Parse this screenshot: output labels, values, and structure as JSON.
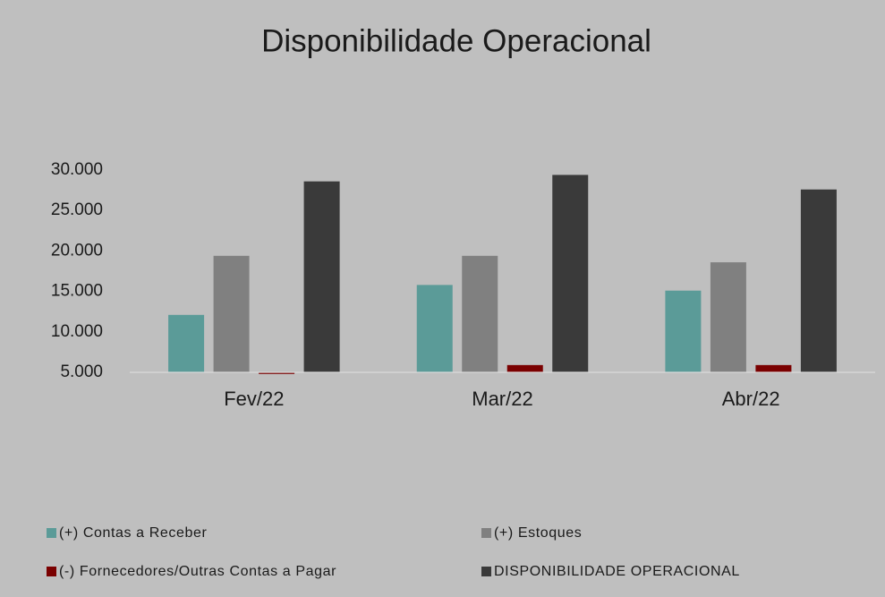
{
  "chart_data": {
    "type": "bar",
    "title": "Disponibilidade Operacional",
    "categories": [
      "Fev/22",
      "Mar/22",
      "Abr/22"
    ],
    "series": [
      {
        "name": "(+) Contas a Receber",
        "color": "#5b9b98",
        "values": [
          12100,
          15800,
          15100
        ]
      },
      {
        "name": "(+) Estoques",
        "color": "#808080",
        "values": [
          19400,
          19400,
          18600
        ]
      },
      {
        "name": "(-) Fornecedores/Outras Contas a Pagar",
        "color": "#7a0000",
        "values": [
          4800,
          5900,
          5900
        ]
      },
      {
        "name": "DISPONIBILIDADE OPERACIONAL",
        "color": "#3a3a3a",
        "values": [
          28600,
          29400,
          27600
        ]
      }
    ],
    "ylim": [
      5000,
      30000
    ],
    "yticks": [
      {
        "value": 5000,
        "label": "5.000"
      },
      {
        "value": 10000,
        "label": "10.000"
      },
      {
        "value": 15000,
        "label": "15.000"
      },
      {
        "value": 20000,
        "label": "20.000"
      },
      {
        "value": 25000,
        "label": "25.000"
      },
      {
        "value": 30000,
        "label": "30.000"
      }
    ],
    "grid": false,
    "legend": "bottom"
  }
}
